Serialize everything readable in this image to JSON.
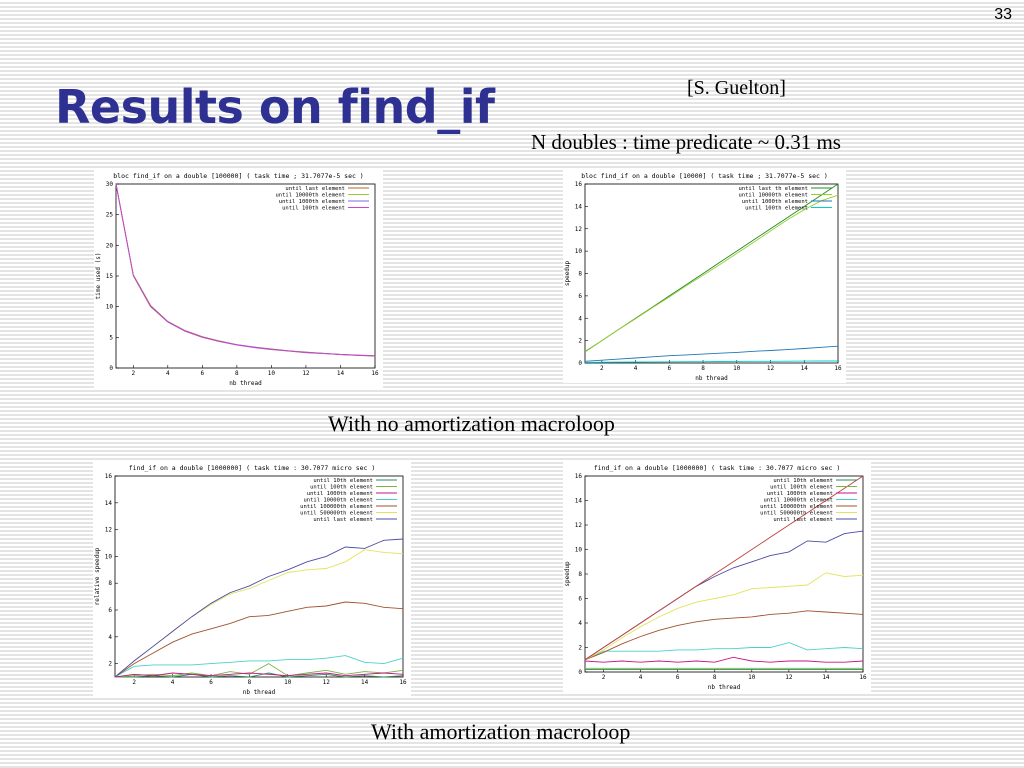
{
  "slide": {
    "page_number": "33",
    "title": "Results on find_if",
    "citation": "[S. Guelton]",
    "subtitle": "N doubles : time predicate ~ 0.31 ms",
    "caption_no_amortization": "With no amortization macroloop",
    "caption_amortization": "With amortization macroloop"
  },
  "chart_data": [
    {
      "type": "line",
      "title": "bloc find_if on a double [100000] ( task time ; 31.7077e-5 sec )",
      "xlabel": "nb thread",
      "ylabel": "time used (s)",
      "xlim": [
        1,
        16
      ],
      "ylim": [
        0,
        30
      ],
      "xticks": [
        2,
        4,
        6,
        8,
        10,
        12,
        14,
        16
      ],
      "yticks": [
        0,
        5,
        10,
        15,
        20,
        25,
        30
      ],
      "legend_position": "top-right",
      "grid": false,
      "x": [
        1,
        2,
        3,
        4,
        5,
        6,
        7,
        8,
        9,
        10,
        11,
        12,
        13,
        14,
        15,
        16
      ],
      "series": [
        {
          "name": "until last element",
          "color": "#b5651d",
          "values": [
            30,
            15.2,
            10.2,
            7.6,
            6.1,
            5.1,
            4.4,
            3.8,
            3.4,
            3.1,
            2.8,
            2.6,
            2.4,
            2.2,
            2.1,
            2.0
          ]
        },
        {
          "name": "until 10000th element",
          "color": "#9acd32",
          "values": [
            30,
            15,
            10,
            7.5,
            6.0,
            5.0,
            4.3,
            3.8,
            3.35,
            3.0,
            2.75,
            2.5,
            2.35,
            2.2,
            2.05,
            1.95
          ]
        },
        {
          "name": "until 1000th element",
          "color": "#7b68ee",
          "values": [
            30.2,
            15.1,
            10.1,
            7.55,
            6.05,
            5.05,
            4.35,
            3.8,
            3.4,
            3.05,
            2.8,
            2.55,
            2.4,
            2.2,
            2.08,
            1.98
          ]
        },
        {
          "name": "until 100th element",
          "color": "#cc44cc",
          "values": [
            30.1,
            15.1,
            10.05,
            7.5,
            6.0,
            5.0,
            4.3,
            3.75,
            3.35,
            3.0,
            2.75,
            2.5,
            2.35,
            2.2,
            2.05,
            1.95
          ]
        }
      ]
    },
    {
      "type": "line",
      "title": "bloc find_if on a double [10000] ( task time ; 31.7077e-5 sec )",
      "xlabel": "nb thread",
      "ylabel": "speedup",
      "xlim": [
        1,
        16
      ],
      "ylim": [
        0,
        16
      ],
      "xticks": [
        2,
        4,
        6,
        8,
        10,
        12,
        14,
        16
      ],
      "yticks": [
        0,
        2,
        4,
        6,
        8,
        10,
        12,
        14,
        16
      ],
      "legend_position": "top-right",
      "grid": false,
      "x": [
        1,
        2,
        3,
        4,
        5,
        6,
        7,
        8,
        9,
        10,
        11,
        12,
        13,
        14,
        15,
        16
      ],
      "series": [
        {
          "name": "until last th element",
          "color": "#228b22",
          "values": [
            1,
            2,
            3,
            4,
            5,
            6,
            7,
            8,
            9,
            10,
            11,
            12,
            13,
            14,
            15,
            16
          ]
        },
        {
          "name": "until 10000th element",
          "color": "#9acd32",
          "values": [
            1.05,
            2.0,
            3.0,
            3.95,
            4.95,
            5.9,
            6.9,
            7.85,
            8.8,
            9.8,
            10.8,
            11.8,
            12.8,
            13.7,
            14.5,
            15.0
          ]
        },
        {
          "name": "until 1000th element",
          "color": "#1f77b4",
          "values": [
            0.15,
            0.25,
            0.35,
            0.45,
            0.55,
            0.65,
            0.72,
            0.8,
            0.88,
            0.95,
            1.05,
            1.12,
            1.2,
            1.3,
            1.4,
            1.5
          ]
        },
        {
          "name": "until 100th element",
          "color": "#00ced1",
          "values": [
            0.05,
            0.07,
            0.08,
            0.09,
            0.1,
            0.11,
            0.12,
            0.12,
            0.13,
            0.14,
            0.15,
            0.15,
            0.16,
            0.17,
            0.18,
            0.18
          ]
        }
      ]
    },
    {
      "type": "line",
      "title": "find_if on a double [1000000] ( task time : 30.7077 micro sec )",
      "xlabel": "nb thread",
      "ylabel": "relative speedup",
      "xlim": [
        1,
        16
      ],
      "ylim": [
        1,
        16
      ],
      "xticks": [
        2,
        4,
        6,
        8,
        10,
        12,
        14,
        16
      ],
      "yticks": [
        2,
        4,
        6,
        8,
        10,
        12,
        14,
        16
      ],
      "legend_position": "top-right",
      "grid": false,
      "x": [
        1,
        2,
        3,
        4,
        5,
        6,
        7,
        8,
        9,
        10,
        11,
        12,
        13,
        14,
        15,
        16
      ],
      "series": [
        {
          "name": "until 10th element",
          "color": "#2e8b57",
          "values": [
            1,
            1.0,
            1.1,
            1.0,
            1.2,
            1.0,
            1.1,
            1.0,
            1.3,
            1.0,
            1.1,
            1.2,
            1.0,
            1.1,
            1.0,
            1.1
          ]
        },
        {
          "name": "until 100th element",
          "color": "#7cb342",
          "values": [
            1,
            1.1,
            1.2,
            1.1,
            1.3,
            1.1,
            1.4,
            1.2,
            2.0,
            1.1,
            1.3,
            1.5,
            1.2,
            1.4,
            1.3,
            1.5
          ]
        },
        {
          "name": "until 1000th element",
          "color": "#c71585",
          "values": [
            1,
            1.2,
            1.1,
            1.3,
            1.2,
            1.1,
            1.2,
            1.3,
            1.2,
            1.1,
            1.2,
            1.3,
            1.1,
            1.2,
            1.3,
            1.2
          ]
        },
        {
          "name": "until 10000th element",
          "color": "#48d1cc",
          "values": [
            1,
            1.8,
            1.9,
            1.9,
            1.9,
            2.0,
            2.1,
            2.2,
            2.2,
            2.3,
            2.3,
            2.4,
            2.6,
            2.1,
            2.0,
            2.4
          ]
        },
        {
          "name": "until 100000th element",
          "color": "#a0522d",
          "values": [
            1,
            2.0,
            2.8,
            3.6,
            4.2,
            4.6,
            5.0,
            5.5,
            5.6,
            5.9,
            6.2,
            6.3,
            6.6,
            6.5,
            6.2,
            6.1
          ]
        },
        {
          "name": "until 500000th element",
          "color": "#e3e35b",
          "values": [
            1,
            2.2,
            3.3,
            4.4,
            5.5,
            6.4,
            7.2,
            7.6,
            8.2,
            8.8,
            9.0,
            9.1,
            9.6,
            10.5,
            10.3,
            10.2
          ]
        },
        {
          "name": "until last element",
          "color": "#4b4ba8",
          "values": [
            1,
            2.2,
            3.3,
            4.4,
            5.5,
            6.5,
            7.3,
            7.8,
            8.5,
            9.0,
            9.6,
            10.0,
            10.7,
            10.6,
            11.2,
            11.3
          ]
        }
      ]
    },
    {
      "type": "line",
      "title": "find_if on a double [1000000] ( task time : 30.7077 micro sec )",
      "xlabel": "nb thread",
      "ylabel": "speedup",
      "xlim": [
        1,
        16
      ],
      "ylim": [
        0,
        16
      ],
      "xticks": [
        2,
        4,
        6,
        8,
        10,
        12,
        14,
        16
      ],
      "yticks": [
        0,
        2,
        4,
        6,
        8,
        10,
        12,
        14,
        16
      ],
      "legend_position": "top-right",
      "grid": false,
      "x": [
        1,
        2,
        3,
        4,
        5,
        6,
        7,
        8,
        9,
        10,
        11,
        12,
        13,
        14,
        15,
        16
      ],
      "series": [
        {
          "name": "until 10th element",
          "color": "#2e8b57",
          "values": [
            0.2,
            0.2,
            0.2,
            0.2,
            0.2,
            0.2,
            0.2,
            0.2,
            0.2,
            0.2,
            0.2,
            0.2,
            0.2,
            0.2,
            0.2,
            0.2
          ]
        },
        {
          "name": "until 100th element",
          "color": "#7cb342",
          "values": [
            0.3,
            0.3,
            0.3,
            0.3,
            0.3,
            0.3,
            0.3,
            0.3,
            0.3,
            0.3,
            0.3,
            0.3,
            0.3,
            0.3,
            0.3,
            0.3
          ]
        },
        {
          "name": "until 1000th element",
          "color": "#c71585",
          "values": [
            0.9,
            0.8,
            0.9,
            0.8,
            0.9,
            0.8,
            0.9,
            0.8,
            1.2,
            0.9,
            0.8,
            0.9,
            0.9,
            0.8,
            0.8,
            0.9
          ]
        },
        {
          "name": "until 10000th element",
          "color": "#48d1cc",
          "values": [
            1.0,
            1.7,
            1.7,
            1.7,
            1.7,
            1.8,
            1.8,
            1.9,
            1.9,
            2.0,
            2.0,
            2.4,
            1.8,
            1.9,
            2.0,
            1.9
          ]
        },
        {
          "name": "until 100000th element",
          "color": "#a0522d",
          "values": [
            1.0,
            1.6,
            2.3,
            2.9,
            3.4,
            3.8,
            4.1,
            4.3,
            4.4,
            4.5,
            4.7,
            4.8,
            5.0,
            4.9,
            4.8,
            4.7
          ]
        },
        {
          "name": "until 500000th element",
          "color": "#e3e35b",
          "values": [
            1.0,
            1.8,
            2.8,
            3.7,
            4.5,
            5.2,
            5.7,
            6.0,
            6.3,
            6.8,
            6.9,
            7.0,
            7.1,
            8.1,
            7.8,
            7.9
          ]
        },
        {
          "name": "until last element",
          "color": "#4b4ba8",
          "values": [
            1.0,
            2.0,
            3.0,
            4.0,
            5.0,
            6.0,
            7.0,
            7.8,
            8.5,
            9.0,
            9.5,
            9.8,
            10.7,
            10.6,
            11.3,
            11.5
          ]
        },
        {
          "name": "",
          "color": "#c04040",
          "values": [
            1,
            2,
            3,
            4,
            5,
            6,
            7,
            8,
            9,
            10,
            11,
            12,
            13,
            14,
            15,
            16
          ]
        }
      ]
    }
  ]
}
